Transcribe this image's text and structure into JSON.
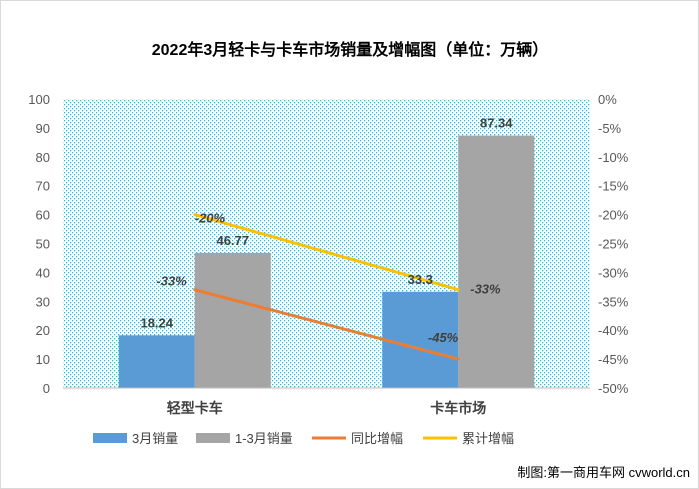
{
  "chart_data": {
    "type": "bar",
    "title": "2022年3月轻卡与卡车市场销量及增幅图（单位：万辆）",
    "categories": [
      "轻型卡车",
      "卡车市场"
    ],
    "series": [
      {
        "name": "3月销量",
        "type": "bar",
        "axis": "left",
        "values": [
          18.24,
          33.3
        ],
        "labels": [
          "18.24",
          "33.3"
        ],
        "color": "#5b9bd5"
      },
      {
        "name": "1-3月销量",
        "type": "bar",
        "axis": "left",
        "values": [
          46.77,
          87.34
        ],
        "labels": [
          "46.77",
          "87.34"
        ],
        "color": "#a5a5a5"
      },
      {
        "name": "同比增幅",
        "type": "line",
        "axis": "right",
        "values": [
          -33,
          -45
        ],
        "labels": [
          "-33%",
          "-45%"
        ],
        "color": "#ed7d31"
      },
      {
        "name": "累计增幅",
        "type": "line",
        "axis": "right",
        "values": [
          -20,
          -33
        ],
        "labels": [
          "-20%",
          "-33%"
        ],
        "color": "#ffc000"
      }
    ],
    "y_left": {
      "ylim": [
        0,
        100
      ],
      "ticks": [
        "100",
        "90",
        "80",
        "70",
        "60",
        "50",
        "40",
        "30",
        "20",
        "10",
        "0"
      ]
    },
    "y_right": {
      "ylim": [
        -50,
        0
      ],
      "ticks": [
        "0%",
        "-5%",
        "-10%",
        "-15%",
        "-20%",
        "-25%",
        "-30%",
        "-35%",
        "-40%",
        "-45%",
        "-50%"
      ]
    },
    "legend_position": "bottom",
    "plot_background": "dotted cyan"
  },
  "footer": {
    "credit": "制图:第一商用车网 cvworld.cn"
  }
}
